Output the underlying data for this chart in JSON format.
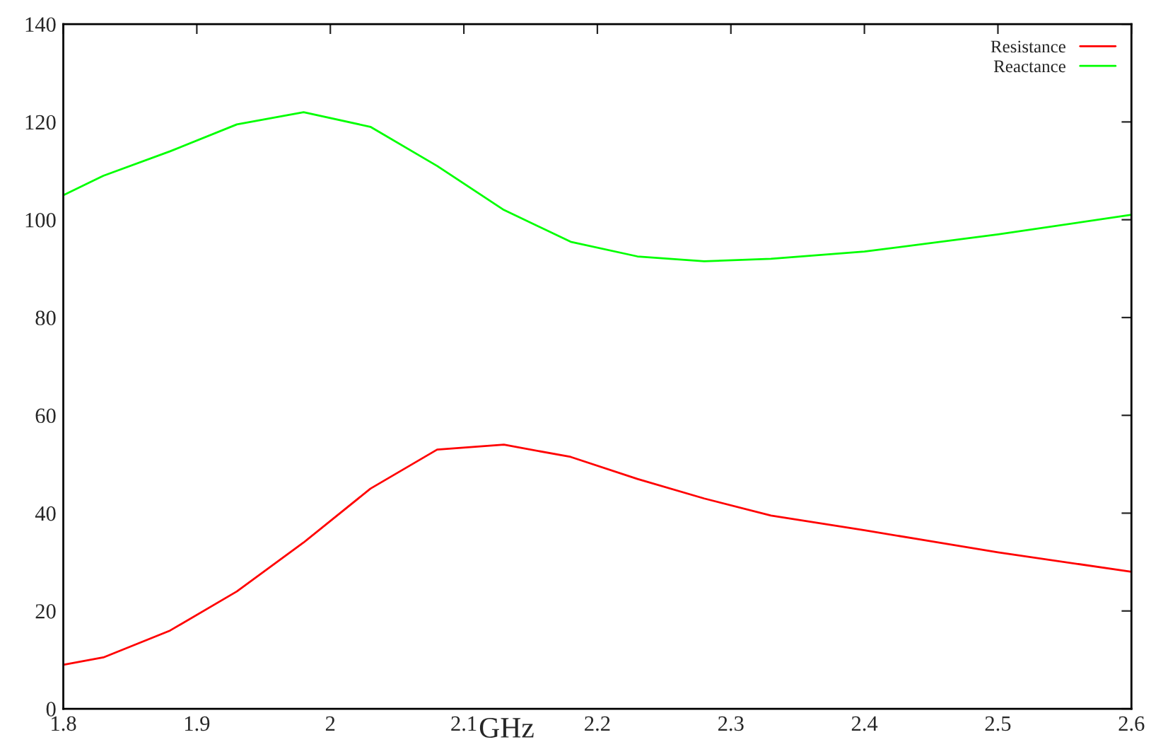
{
  "chart_data": {
    "type": "line",
    "xlabel": "GHz",
    "x": [
      1.8,
      1.83,
      1.88,
      1.93,
      1.98,
      2.03,
      2.08,
      2.13,
      2.18,
      2.23,
      2.28,
      2.33,
      2.4,
      2.5,
      2.6
    ],
    "series": [
      {
        "name": "Resistance",
        "color": "#ff0000",
        "values": [
          9,
          10.5,
          16,
          24,
          34,
          45,
          53,
          54,
          51.5,
          47,
          43,
          39.5,
          36.5,
          32,
          28
        ]
      },
      {
        "name": "Reactance",
        "color": "#00ff00",
        "values": [
          105,
          109,
          114,
          119.5,
          122,
          119,
          111,
          102,
          95.5,
          92.5,
          91.5,
          92,
          93.5,
          97,
          101
        ]
      }
    ],
    "xlim": [
      1.8,
      2.6
    ],
    "xticks": [
      1.8,
      1.9,
      2,
      2.1,
      2.2,
      2.3,
      2.4,
      2.5,
      2.6
    ],
    "ylim": [
      0,
      140
    ],
    "yticks": [
      0,
      20,
      40,
      60,
      80,
      100,
      120,
      140
    ],
    "grid": false,
    "legend": "top right",
    "marker": "none",
    "line_style": "solid"
  }
}
